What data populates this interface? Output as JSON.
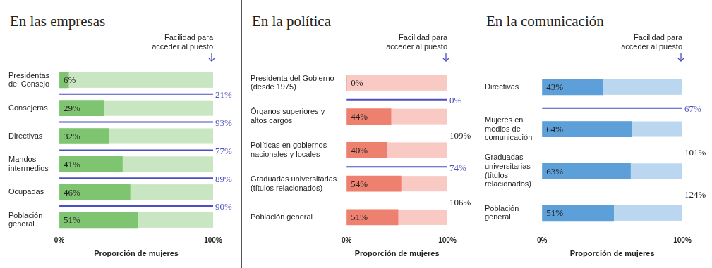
{
  "chart_data": [
    {
      "type": "bar",
      "orientation": "horizontal",
      "title": "En las empresas",
      "annotation": "Facilidad para acceder al puesto",
      "categories": [
        "Presidentas del Consejo",
        "Consejeras",
        "Directivas",
        "Mandos intermedios",
        "Ocupadas",
        "Población general"
      ],
      "values": [
        6,
        29,
        32,
        41,
        46,
        51
      ],
      "value_labels": [
        "6%",
        "29%",
        "32%",
        "41%",
        "46%",
        "51%"
      ],
      "ease": [
        21,
        93,
        77,
        89,
        90,
        null
      ],
      "ease_labels": [
        "21%",
        "93%",
        "77%",
        "89%",
        "90%",
        null
      ],
      "color": "#7fc470",
      "x_label": "Proporción de mujeres",
      "xlim": [
        0,
        100
      ],
      "xticks": [
        {
          "value": 0,
          "label": "0%"
        },
        {
          "value": 100,
          "label": "100%"
        }
      ],
      "grid": false,
      "data_labels": true
    },
    {
      "type": "bar",
      "orientation": "horizontal",
      "title": "En la política",
      "annotation": "Facilidad para acceder al puesto",
      "categories": [
        "Presidenta del Gobierno (desde 1975)",
        "Órganos superiores y altos cargos",
        "Políticas en gobiernos nacionales y locales",
        "Graduadas universitarias (títulos relacionados)",
        "Población general"
      ],
      "values": [
        0,
        44,
        40,
        54,
        51
      ],
      "value_labels": [
        "0%",
        "44%",
        "40%",
        "54%",
        "51%"
      ],
      "ease": [
        0,
        109,
        74,
        106,
        null
      ],
      "ease_labels": [
        "0%",
        "109%",
        "74%",
        "106%",
        null
      ],
      "color": "#ee8070",
      "x_label": "Proporción de mujeres",
      "xlim": [
        0,
        100
      ],
      "xticks": [
        {
          "value": 0,
          "label": "0%"
        },
        {
          "value": 100,
          "label": "100%"
        }
      ],
      "grid": false,
      "data_labels": true
    },
    {
      "type": "bar",
      "orientation": "horizontal",
      "title": "En la comunicación",
      "annotation": "Facilidad para acceder al puesto",
      "categories": [
        "Directivas",
        "Mujeres en medios de comunicación",
        "Graduadas universitarias (títulos relacionados)",
        "Población general"
      ],
      "values": [
        43,
        64,
        63,
        51
      ],
      "value_labels": [
        "43%",
        "64%",
        "63%",
        "51%"
      ],
      "ease": [
        67,
        101,
        124,
        null
      ],
      "ease_labels": [
        "67%",
        "101%",
        "124%",
        null
      ],
      "color": "#5d9fd8",
      "x_label": "Proporción de mujeres",
      "xlim": [
        0,
        100
      ],
      "xticks": [
        {
          "value": 0,
          "label": "0%"
        },
        {
          "value": 100,
          "label": "100%"
        }
      ],
      "grid": false,
      "data_labels": true
    }
  ]
}
